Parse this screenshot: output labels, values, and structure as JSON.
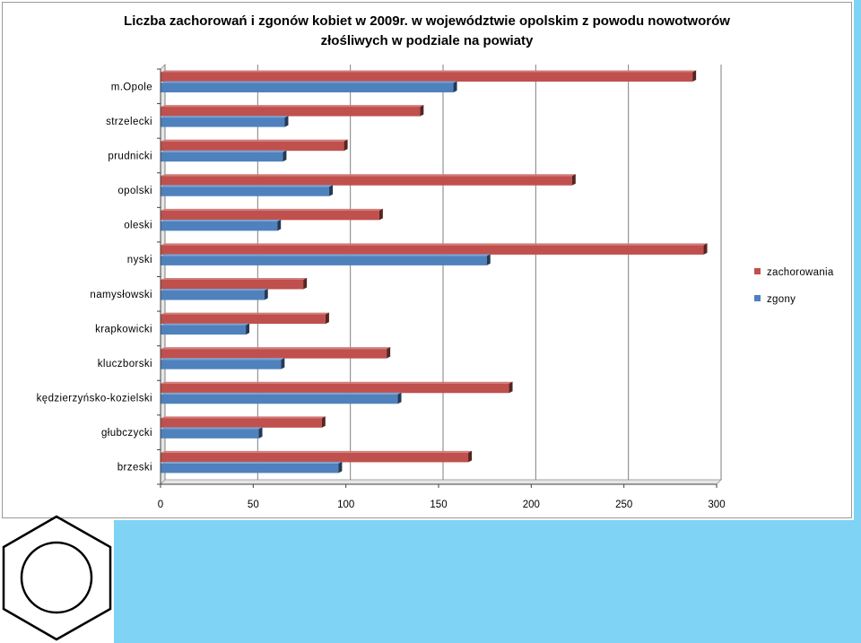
{
  "colors": {
    "slide_background": "#ffffff",
    "accent_band": "#7fd3f5",
    "series_zachorowania": "#c0504d",
    "series_zgony": "#4f81bd",
    "gridline": "#7f7f7f"
  },
  "logo": {
    "icon": "benzene-hexagon-icon"
  },
  "chart_data": {
    "type": "bar",
    "orientation": "horizontal",
    "title": "Liczba zachorowań i zgonów kobiet w 2009r. w województwie opolskim z powodu nowotworów złośliwych    w podziale na powiaty",
    "title_lines": [
      "Liczba zachorowań i zgonów kobiet w 2009r. w województwie opolskim z powodu nowotworów",
      "złośliwych    w podziale na powiaty"
    ],
    "categories": [
      "m.Opole",
      "strzelecki",
      "prudnicki",
      "opolski",
      "oleski",
      "nyski",
      "namysłowski",
      "krapkowicki",
      "kluczborski",
      "kędzierzyńsko-kozielski",
      "głubczycki",
      "brzeski"
    ],
    "series": [
      {
        "name": "zachorowania",
        "values": [
          287,
          140,
          99,
          222,
          118,
          293,
          77,
          89,
          122,
          188,
          87,
          166
        ]
      },
      {
        "name": "zgony",
        "values": [
          158,
          67,
          66,
          91,
          63,
          176,
          56,
          46,
          65,
          128,
          53,
          96
        ]
      }
    ],
    "xlim": [
      0,
      300
    ],
    "xticks": [
      "0",
      "50",
      "100",
      "150",
      "200",
      "250",
      "300"
    ],
    "grid": true,
    "legend_position": "right"
  }
}
